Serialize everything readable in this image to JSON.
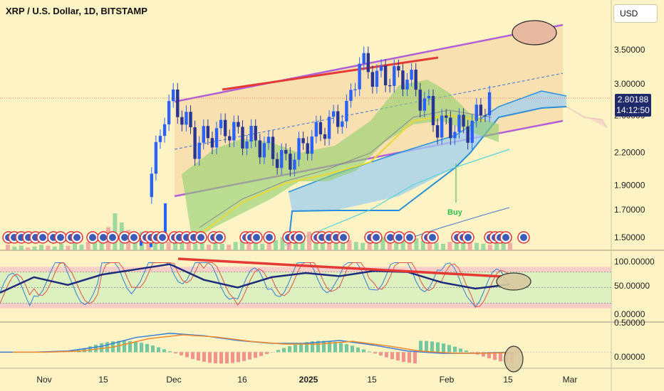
{
  "header": {
    "title": "XRP / U.S. Dollar, 1D, BITSTAMP",
    "currency_button": "USD"
  },
  "price_tag": {
    "price": "2.80188",
    "countdown": "14:12:50"
  },
  "colors": {
    "background": "#fdf3c4",
    "bull": "#2962ff",
    "bear": "#283593",
    "channel": "#b05fd6",
    "resistance": "#e53935",
    "cloud": "#2a8fd8",
    "buy": "#2fbf4a"
  },
  "axes": {
    "x_labels": [
      "Nov",
      "15",
      "Dec",
      "16",
      "2025",
      "15",
      "Feb",
      "15",
      "Mar"
    ],
    "price_ticks": [
      "3.50000",
      "3.00000",
      "2.60000",
      "2.20000",
      "1.90000",
      "1.70000",
      "1.50000"
    ],
    "stoch_ticks": [
      "100.00000",
      "50.00000",
      "0.00000"
    ],
    "macd_ticks": [
      "0.50000",
      "0.00000"
    ]
  },
  "signals": {
    "buy_label": "Buy"
  },
  "chart_data": [
    {
      "type": "candlestick",
      "title": "XRP / U.S. Dollar, 1D, BITSTAMP",
      "y_scale": "log",
      "ylim": [
        1.42,
        4.0
      ],
      "indicators": [
        "rising channel",
        "Ichimoku cloud",
        "moving averages",
        "volume"
      ],
      "last_price": 2.80188,
      "approx_closes": [
        {
          "date": "2024-11-28",
          "close": 1.8
        },
        {
          "date": "2024-12-02",
          "close": 2.6
        },
        {
          "date": "2024-12-04",
          "close": 2.8
        },
        {
          "date": "2024-12-09",
          "close": 2.3
        },
        {
          "date": "2024-12-16",
          "close": 2.45
        },
        {
          "date": "2024-12-24",
          "close": 2.3
        },
        {
          "date": "2024-12-30",
          "close": 2.1
        },
        {
          "date": "2025-01-06",
          "close": 2.4
        },
        {
          "date": "2025-01-13",
          "close": 2.65
        },
        {
          "date": "2025-01-16",
          "close": 3.3
        },
        {
          "date": "2025-01-20",
          "close": 3.1
        },
        {
          "date": "2025-01-27",
          "close": 3.1
        },
        {
          "date": "2025-02-03",
          "close": 2.5
        },
        {
          "date": "2025-02-10",
          "close": 2.45
        },
        {
          "date": "2025-02-15",
          "close": 2.8
        }
      ]
    },
    {
      "type": "line",
      "name": "Stochastic RSI",
      "ylim": [
        0,
        100
      ],
      "approx_values": [
        40,
        70,
        55,
        75,
        85,
        95,
        65,
        50,
        70,
        78,
        72,
        82,
        80,
        60,
        48,
        56
      ]
    },
    {
      "type": "line",
      "name": "MACD",
      "ylim": [
        -0.08,
        0.55
      ],
      "approx_values": [
        0,
        0,
        0.02,
        0.1,
        0.25,
        0.32,
        0.28,
        0.2,
        0.15,
        0.15,
        0.2,
        0.12,
        0.02,
        -0.02,
        -0.02,
        0
      ]
    }
  ]
}
